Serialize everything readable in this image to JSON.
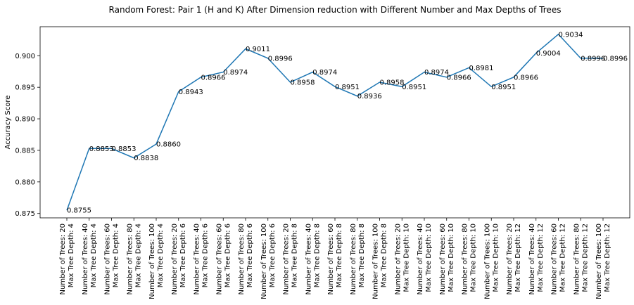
{
  "chart_data": {
    "type": "line",
    "title": "Random Forest: Pair 1 (H and K) After Dimension reduction with Different Number and Max Depths of Trees",
    "xlabel": "",
    "ylabel": "Accuracy Score",
    "ylim": [
      0.8743,
      0.9046
    ],
    "yticks": [
      "0.875",
      "0.880",
      "0.885",
      "0.890",
      "0.895",
      "0.900"
    ],
    "ytick_values": [
      0.875,
      0.88,
      0.885,
      0.89,
      0.895,
      0.9
    ],
    "grid": false,
    "line_color": "#1f77b4",
    "categories": [
      [
        "Number of Trees: 20",
        "Max Tree Depth: 4"
      ],
      [
        "Number of Trees: 40",
        "Max Tree Depth: 4"
      ],
      [
        "Number of Trees: 60",
        "Max Tree Depth: 4"
      ],
      [
        "Number of Trees: 80",
        "Max Tree Depth: 4"
      ],
      [
        "Number of Trees: 100",
        "Max Tree Depth: 4"
      ],
      [
        "Number of Trees: 20",
        "Max Tree Depth: 6"
      ],
      [
        "Number of Trees: 40",
        "Max Tree Depth: 6"
      ],
      [
        "Number of Trees: 60",
        "Max Tree Depth: 6"
      ],
      [
        "Number of Trees: 80",
        "Max Tree Depth: 6"
      ],
      [
        "Number of Trees: 100",
        "Max Tree Depth: 6"
      ],
      [
        "Number of Trees: 20",
        "Max Tree Depth: 8"
      ],
      [
        "Number of Trees: 40",
        "Max Tree Depth: 8"
      ],
      [
        "Number of Trees: 60",
        "Max Tree Depth: 8"
      ],
      [
        "Number of Trees: 80",
        "Max Tree Depth: 8"
      ],
      [
        "Number of Trees: 100",
        "Max Tree Depth: 8"
      ],
      [
        "Number of Trees: 20",
        "Max Tree Depth: 10"
      ],
      [
        "Number of Trees: 40",
        "Max Tree Depth: 10"
      ],
      [
        "Number of Trees: 60",
        "Max Tree Depth: 10"
      ],
      [
        "Number of Trees: 80",
        "Max Tree Depth: 10"
      ],
      [
        "Number of Trees: 100",
        "Max Tree Depth: 10"
      ],
      [
        "Number of Trees: 20",
        "Max Tree Depth: 12"
      ],
      [
        "Number of Trees: 40",
        "Max Tree Depth: 12"
      ],
      [
        "Number of Trees: 60",
        "Max Tree Depth: 12"
      ],
      [
        "Number of Trees: 80",
        "Max Tree Depth: 12"
      ],
      [
        "Number of Trees: 100",
        "Max Tree Depth: 12"
      ]
    ],
    "values": [
      0.8755,
      0.8853,
      0.8853,
      0.8838,
      0.886,
      0.8943,
      0.8966,
      0.8974,
      0.9011,
      0.8996,
      0.8958,
      0.8974,
      0.8951,
      0.8936,
      0.8958,
      0.8951,
      0.8974,
      0.8966,
      0.8981,
      0.8951,
      0.8966,
      0.9004,
      0.9034,
      0.8996,
      0.8996
    ],
    "value_labels": [
      "0.8755",
      "0.8853",
      "0.8853",
      "0.8838",
      "0.8860",
      "0.8943",
      "0.8966",
      "0.8974",
      "0.9011",
      "0.8996",
      "0.8958",
      "0.8974",
      "0.8951",
      "0.8936",
      "0.8958",
      "0.8951",
      "0.8974",
      "0.8966",
      "0.8981",
      "0.8951",
      "0.8966",
      "0.9004",
      "0.9034",
      "0.8996",
      "0.8996"
    ]
  }
}
